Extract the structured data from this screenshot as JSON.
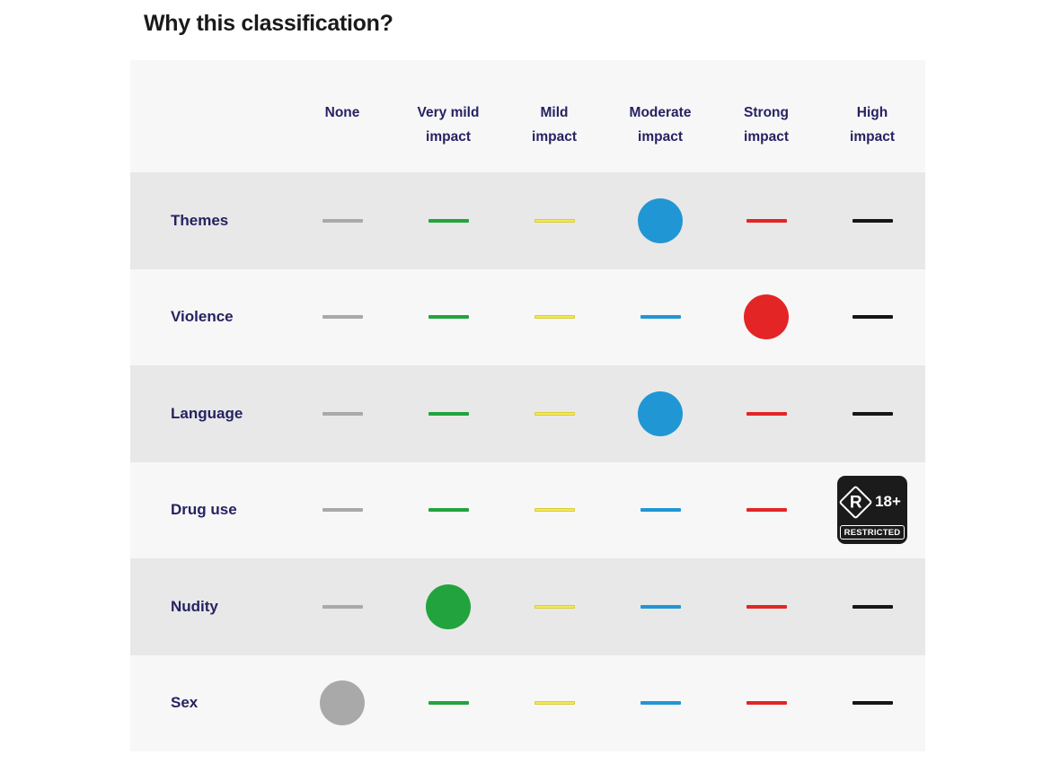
{
  "page": {
    "title": "Why this classification?"
  },
  "matrix": {
    "columns": [
      {
        "id": "none",
        "label": "None",
        "color": "#a9a9a9",
        "stroke": "#a9a9a9"
      },
      {
        "id": "very-mild",
        "label": "Very mild impact",
        "color": "#22a33e",
        "stroke": "#22a33e"
      },
      {
        "id": "mild",
        "label": "Mild impact",
        "color": "#f2e954",
        "stroke": "#d9cc3b"
      },
      {
        "id": "moderate",
        "label": "Moderate impact",
        "color": "#2196d4",
        "stroke": "#2196d4"
      },
      {
        "id": "strong",
        "label": "Strong impact",
        "color": "#e32526",
        "stroke": "#e32526"
      },
      {
        "id": "high",
        "label": "High impact",
        "color": "#161616",
        "stroke": "#161616"
      }
    ],
    "rows": [
      {
        "label": "Themes",
        "selected_level": "Moderate impact"
      },
      {
        "label": "Violence",
        "selected_level": "Strong impact"
      },
      {
        "label": "Language",
        "selected_level": "Moderate impact"
      },
      {
        "label": "Drug use",
        "selected_level": "High impact"
      },
      {
        "label": "Nudity",
        "selected_level": "Very mild impact"
      },
      {
        "label": "Sex",
        "selected_level": "None"
      }
    ],
    "r18_badge": {
      "rating_letter": "R",
      "age_text": "18+",
      "caption": "RESTRICTED"
    },
    "row_band_colors": {
      "shaded": "#e8e8e8",
      "plain": "#f7f7f7"
    }
  },
  "chart_data": {
    "type": "table",
    "title": "Why this classification?",
    "columns": [
      "None",
      "Very mild impact",
      "Mild impact",
      "Moderate impact",
      "Strong impact",
      "High impact"
    ],
    "rows": [
      "Themes",
      "Violence",
      "Language",
      "Drug use",
      "Nudity",
      "Sex"
    ],
    "values": {
      "Themes": "Moderate impact",
      "Violence": "Strong impact",
      "Language": "Moderate impact",
      "Drug use": "High impact (R 18+ RESTRICTED)",
      "Nudity": "Very mild impact",
      "Sex": "None"
    },
    "legend": {
      "None": "#a9a9a9",
      "Very mild impact": "#22a33e",
      "Mild impact": "#f2e954",
      "Moderate impact": "#2196d4",
      "Strong impact": "#e32526",
      "High impact": "#161616"
    }
  }
}
